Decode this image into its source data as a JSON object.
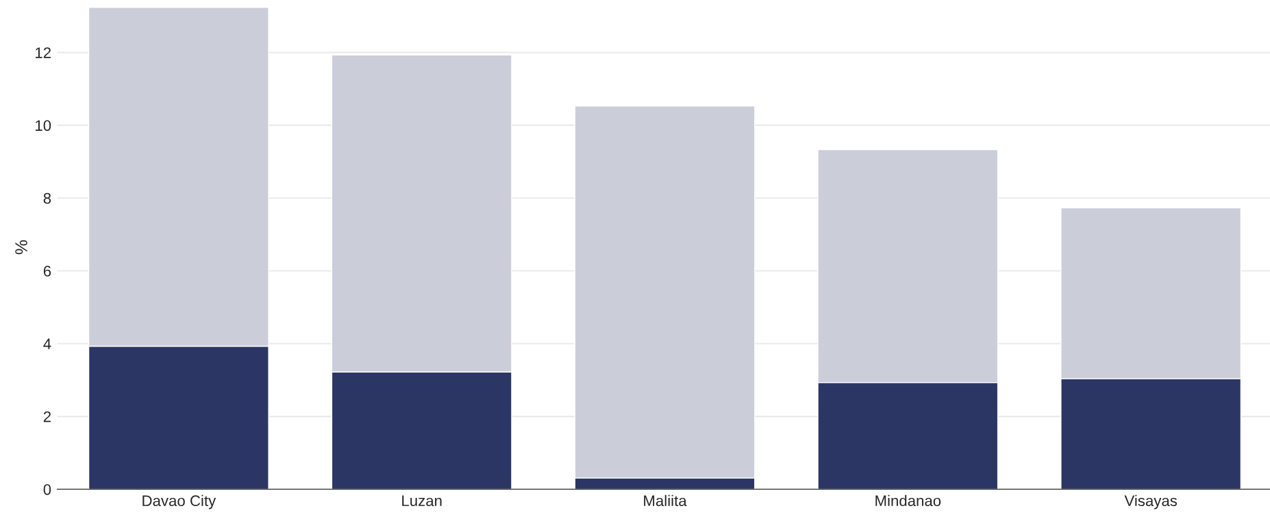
{
  "chart_data": {
    "type": "bar",
    "stacked": true,
    "ylabel": "%",
    "categories": [
      "Davao City",
      "Luzan",
      "Maliita",
      "Mindanao",
      "Visayas"
    ],
    "series": [
      {
        "color": "#2b3664",
        "values": [
          3.93,
          3.22,
          0.31,
          2.93,
          3.04
        ]
      },
      {
        "color": "#cbcdd9",
        "values": [
          9.31,
          8.71,
          10.22,
          6.4,
          4.69
        ]
      }
    ],
    "ylim": [
      0,
      13.3
    ],
    "yticks": [
      0,
      2,
      4,
      6,
      8,
      10,
      12
    ],
    "grid": "y"
  }
}
